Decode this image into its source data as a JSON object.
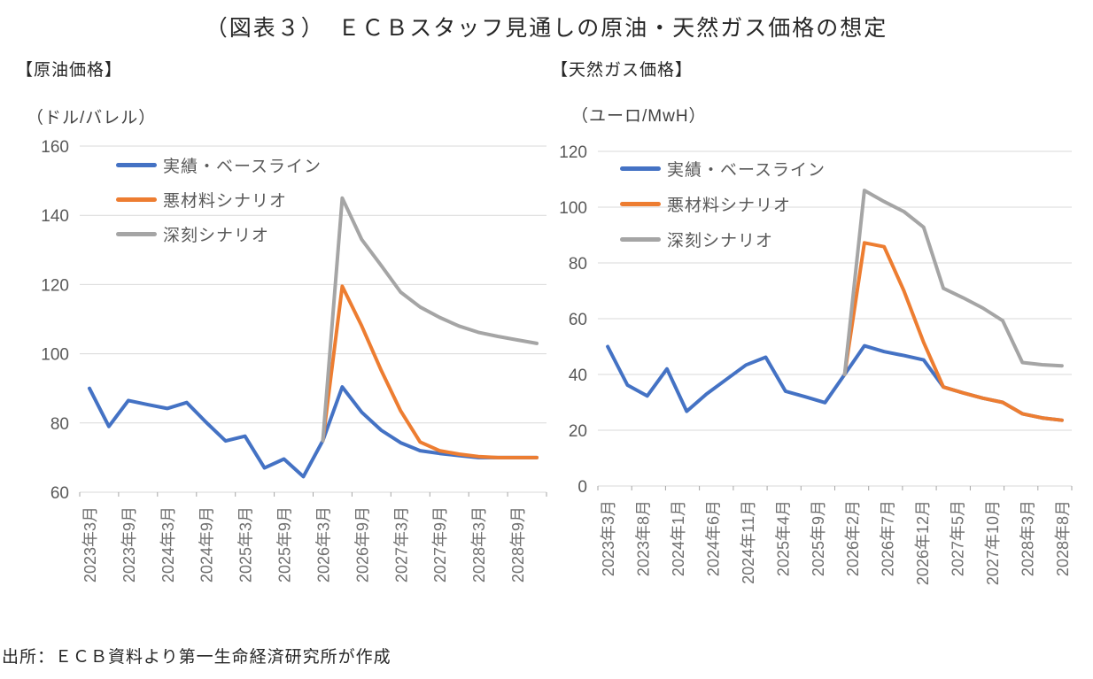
{
  "title": "（図表３）　ＥＣＢスタッフ見通しの原油・天然ガス価格の想定",
  "source": "出所：ＥＣＢ資料より第一生命経済研究所が作成",
  "colors": {
    "baseline": "#4472C4",
    "adverse": "#ED7D31",
    "severe": "#A5A5A5",
    "grid": "#D9D9D9",
    "axis_tick": "#A6A6A6",
    "tick_text": "#595959"
  },
  "chart_data": [
    {
      "type": "line",
      "heading": "【原油価格】",
      "unit": "（ドル/バレル）",
      "ylim": [
        60,
        160
      ],
      "yticks": [
        60,
        80,
        100,
        120,
        140,
        160
      ],
      "grid": true,
      "legend_position": "upper-left-inside",
      "n_points": 24,
      "x_tick_labels": [
        "2023年3月",
        "2023年9月",
        "2024年3月",
        "2024年9月",
        "2025年3月",
        "2025年9月",
        "2026年3月",
        "2026年9月",
        "2027年3月",
        "2027年9月",
        "2028年3月",
        "2028年9月"
      ],
      "label_at": [
        0,
        2,
        4,
        6,
        8,
        10,
        12,
        14,
        16,
        18,
        20,
        22
      ],
      "series": [
        {
          "name": "実績・ベースライン",
          "color": "#4472C4",
          "values": [
            90,
            79,
            86.5,
            85.3,
            84.2,
            85.9,
            80.2,
            74.8,
            76.2,
            67,
            69.6,
            64.5,
            74.9,
            90.4,
            83.1,
            77.9,
            74.3,
            72,
            71.2,
            70.6,
            70,
            70,
            70,
            70
          ]
        },
        {
          "name": "悪材料シナリオ",
          "color": "#ED7D31",
          "values": [
            null,
            null,
            null,
            null,
            null,
            null,
            null,
            null,
            null,
            null,
            null,
            null,
            74.9,
            119.5,
            108,
            95.2,
            83.5,
            74.5,
            72,
            71,
            70.3,
            70,
            70,
            70
          ]
        },
        {
          "name": "深刻シナリオ",
          "color": "#A5A5A5",
          "values": [
            null,
            null,
            null,
            null,
            null,
            null,
            null,
            null,
            null,
            null,
            null,
            null,
            74.9,
            145,
            133,
            125.5,
            117.8,
            113.5,
            110.5,
            108,
            106.2,
            105,
            104,
            103
          ]
        }
      ]
    },
    {
      "type": "line",
      "heading": "【天然ガス価格】",
      "unit": "（ユーロ/MwH）",
      "ylim": [
        0,
        120
      ],
      "yticks": [
        0,
        20,
        40,
        60,
        80,
        100,
        120
      ],
      "grid": true,
      "legend_position": "upper-left-inside",
      "n_points": 24,
      "x_tick_labels": [
        "2023年3月",
        "2023年8月",
        "2024年1月",
        "2024年6月",
        "2024年11月",
        "2025年4月",
        "2025年9月",
        "2026年2月",
        "2026年7月",
        "2026年12月",
        "2027年5月",
        "2027年10月",
        "2028年3月",
        "2028年8月"
      ],
      "label_at": [
        0,
        1.77,
        3.54,
        5.31,
        7.08,
        8.85,
        10.62,
        12.38,
        14.15,
        15.92,
        17.69,
        19.46,
        21.23,
        23
      ],
      "series": [
        {
          "name": "実績・ベースライン",
          "color": "#4472C4",
          "values": [
            50,
            36.2,
            32.3,
            42,
            26.8,
            33,
            38.2,
            43.4,
            46.2,
            34,
            32,
            29.9,
            40,
            50.3,
            48.2,
            46.8,
            45.2,
            35.5,
            33.4,
            31.5,
            30,
            25.9,
            24.4,
            23.6
          ]
        },
        {
          "name": "悪材料シナリオ",
          "color": "#ED7D31",
          "values": [
            null,
            null,
            null,
            null,
            null,
            null,
            null,
            null,
            null,
            null,
            null,
            null,
            40,
            87.2,
            85.8,
            70,
            51.5,
            35.5,
            33.4,
            31.5,
            30,
            25.9,
            24.4,
            23.6
          ]
        },
        {
          "name": "深刻シナリオ",
          "color": "#A5A5A5",
          "values": [
            null,
            null,
            null,
            null,
            null,
            null,
            null,
            null,
            null,
            null,
            null,
            null,
            40,
            106,
            102,
            98.4,
            92.8,
            70.9,
            67.5,
            63.8,
            59.3,
            44.3,
            43.5,
            43.1
          ]
        }
      ]
    }
  ]
}
